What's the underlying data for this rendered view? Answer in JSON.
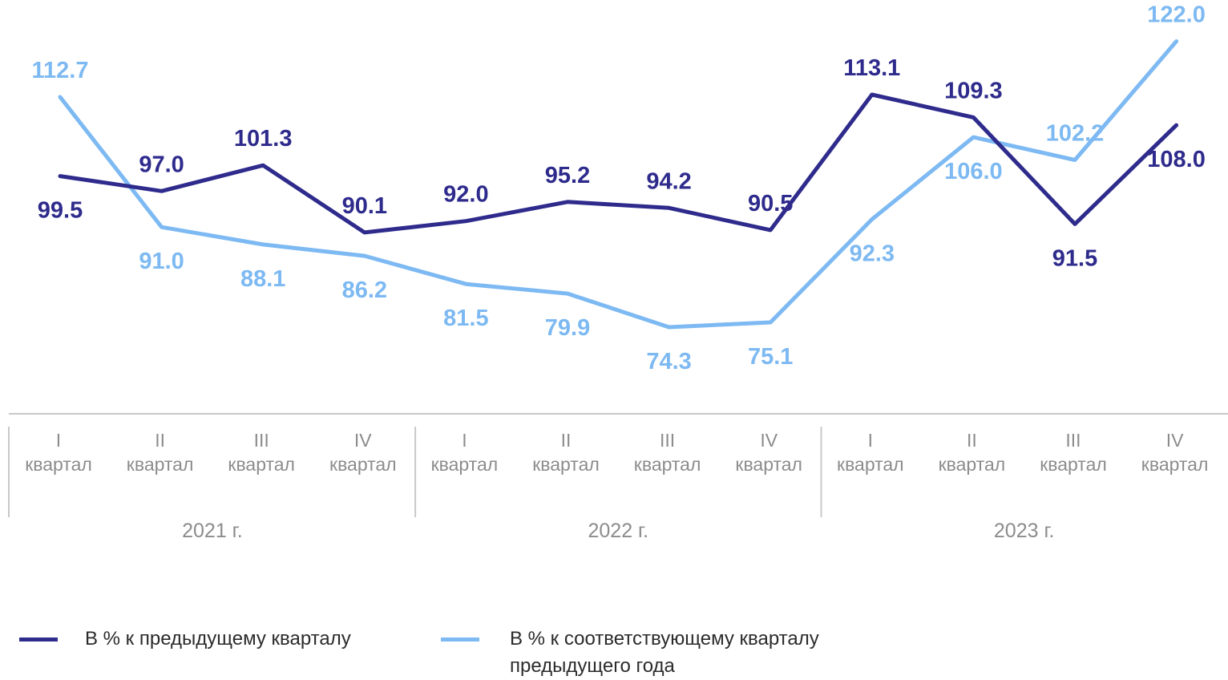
{
  "chart_data": {
    "type": "line",
    "quarter_labels": [
      "I",
      "II",
      "III",
      "IV",
      "I",
      "II",
      "III",
      "IV",
      "I",
      "II",
      "III",
      "IV"
    ],
    "quarter_word": "квартал",
    "years": [
      {
        "label": "2021 г.",
        "quarters": 4
      },
      {
        "label": "2022 г.",
        "quarters": 4
      },
      {
        "label": "2023 г.",
        "quarters": 4
      }
    ],
    "series": [
      {
        "name": "В % к предыдущему кварталу",
        "color": "#2e2b8c",
        "values": [
          99.5,
          97.0,
          101.3,
          90.1,
          92.0,
          95.2,
          94.2,
          90.5,
          113.1,
          109.3,
          91.5,
          108.0
        ],
        "label_pos": [
          "below",
          "above",
          "above",
          "above",
          "above",
          "above",
          "above",
          "above",
          "above",
          "above",
          "below",
          "below"
        ]
      },
      {
        "name": "В % к соответствующему кварталу предыдущего года",
        "color": "#7db9f2",
        "values": [
          112.7,
          91.0,
          88.1,
          86.2,
          81.5,
          79.9,
          74.3,
          75.1,
          92.3,
          106.0,
          102.2,
          122.0
        ],
        "label_pos": [
          "above",
          "below",
          "below",
          "below",
          "below",
          "below",
          "below",
          "below",
          "below",
          "below",
          "above",
          "above"
        ]
      }
    ],
    "ylim": [
      70,
      125
    ],
    "grid": false,
    "legend_position": "bottom-left"
  }
}
